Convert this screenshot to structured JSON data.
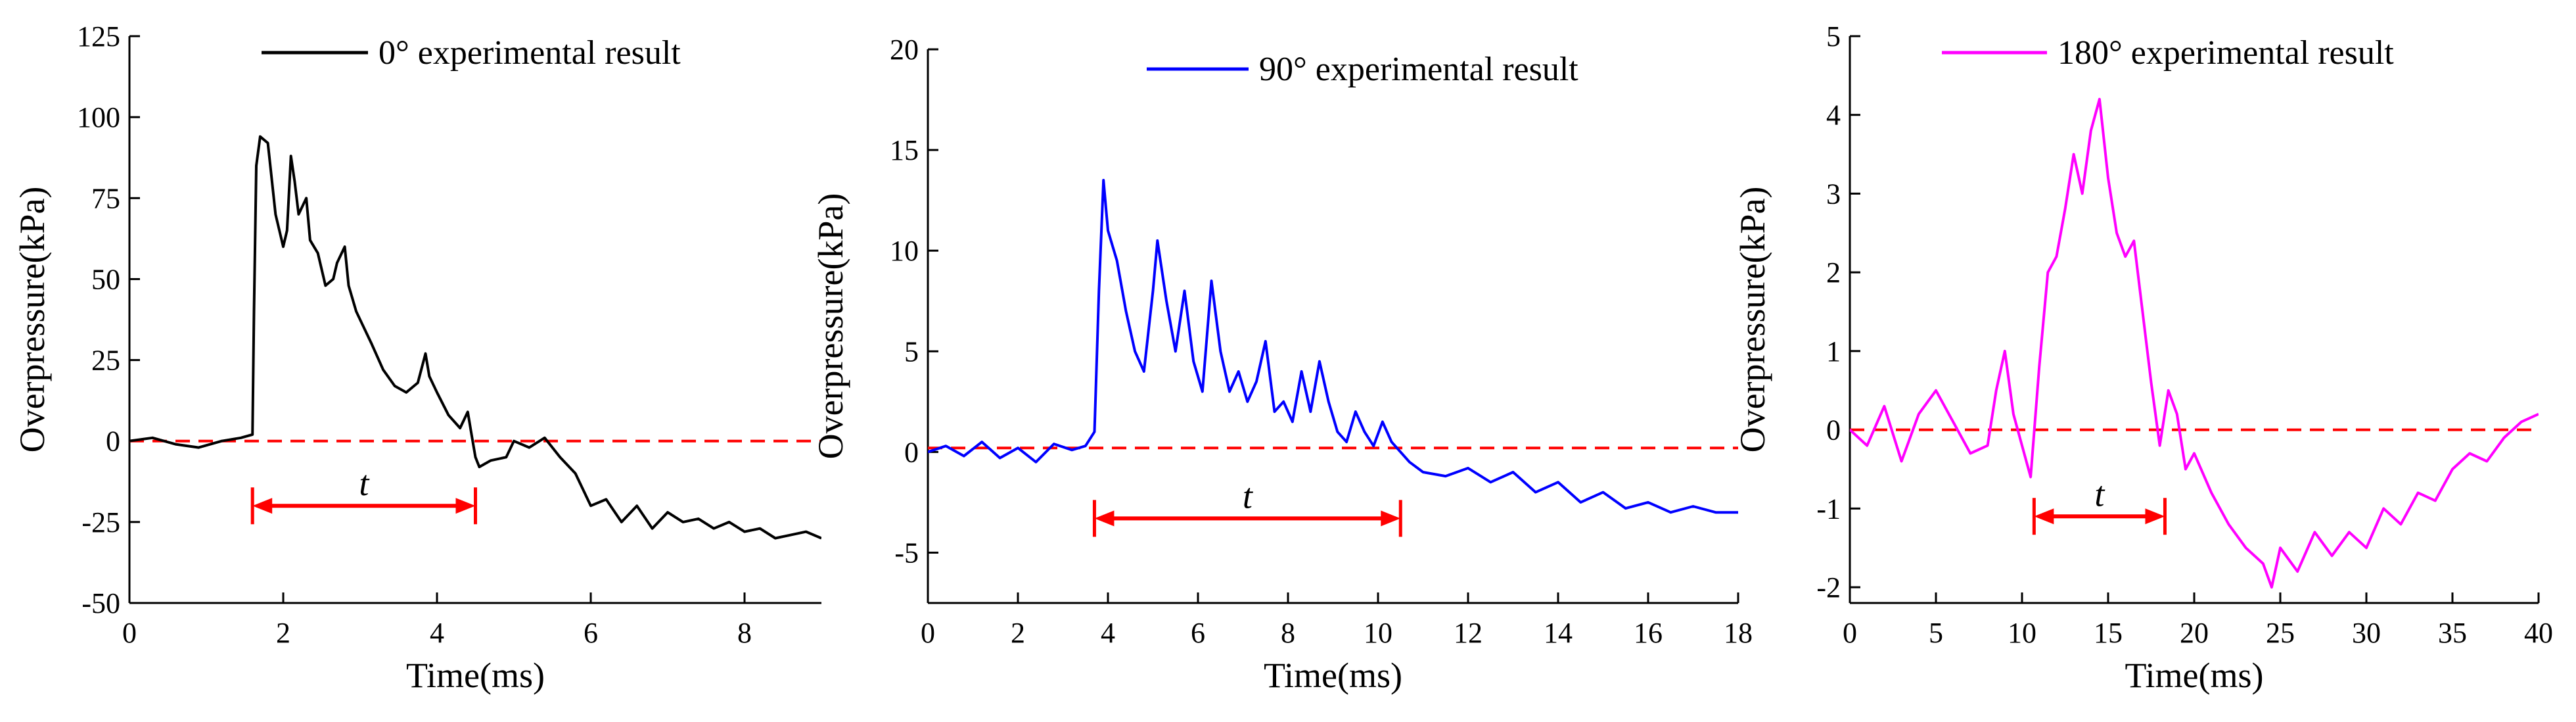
{
  "chart_data": [
    {
      "type": "line",
      "title": "",
      "xlabel": "Time(ms)",
      "ylabel": "Overpressure(kPa)",
      "xlim": [
        0,
        9
      ],
      "ylim": [
        -50,
        125
      ],
      "xticks": [
        0,
        2,
        4,
        6,
        8
      ],
      "yticks": [
        -50,
        -25,
        0,
        25,
        50,
        75,
        100,
        125
      ],
      "xtick_labels": [
        "0",
        "2",
        "4",
        "6",
        "8"
      ],
      "ytick_labels": [
        "-50",
        "-25",
        "0",
        "25",
        "50",
        "75",
        "100",
        "125"
      ],
      "legend": "top-right",
      "reference_line": {
        "y": 0,
        "color": "#ff0000",
        "style": "dashed"
      },
      "duration_marker": {
        "label": "t",
        "x_start": 1.6,
        "x_end": 4.5,
        "y": -20,
        "color": "#ff0000"
      },
      "series": [
        {
          "name": "0° experimental result",
          "color": "#000000",
          "x": [
            0,
            0.3,
            0.6,
            0.9,
            1.2,
            1.45,
            1.6,
            1.62,
            1.65,
            1.7,
            1.8,
            1.9,
            2.0,
            2.05,
            2.1,
            2.15,
            2.2,
            2.3,
            2.35,
            2.45,
            2.55,
            2.65,
            2.7,
            2.8,
            2.85,
            2.95,
            3.05,
            3.15,
            3.3,
            3.45,
            3.6,
            3.75,
            3.85,
            3.9,
            4.0,
            4.15,
            4.3,
            4.4,
            4.45,
            4.5,
            4.55,
            4.7,
            4.9,
            5.0,
            5.2,
            5.4,
            5.6,
            5.8,
            6.0,
            6.2,
            6.4,
            6.6,
            6.8,
            7.0,
            7.2,
            7.4,
            7.6,
            7.8,
            8.0,
            8.2,
            8.4,
            8.6,
            8.8,
            9.0
          ],
          "y": [
            0,
            1,
            -1,
            -2,
            0,
            1,
            2,
            40,
            85,
            94,
            92,
            70,
            60,
            65,
            88,
            80,
            70,
            75,
            62,
            58,
            48,
            50,
            55,
            60,
            48,
            40,
            35,
            30,
            22,
            17,
            15,
            18,
            27,
            20,
            15,
            8,
            4,
            9,
            2,
            -5,
            -8,
            -6,
            -5,
            0,
            -2,
            1,
            -5,
            -10,
            -20,
            -18,
            -25,
            -20,
            -27,
            -22,
            -25,
            -24,
            -27,
            -25,
            -28,
            -27,
            -30,
            -29,
            -28,
            -30
          ]
        }
      ]
    },
    {
      "type": "line",
      "title": "",
      "xlabel": "Time(ms)",
      "ylabel": "Overpressure(kPa)",
      "xlim": [
        0,
        18
      ],
      "ylim": [
        -7.5,
        20
      ],
      "xticks": [
        0,
        2,
        4,
        6,
        8,
        10,
        12,
        14,
        16,
        18
      ],
      "yticks": [
        -5,
        0,
        5,
        10,
        15,
        20
      ],
      "xtick_labels": [
        "0",
        "2",
        "4",
        "6",
        "8",
        "10",
        "12",
        "14",
        "16",
        "18"
      ],
      "ytick_labels": [
        "-5",
        "0",
        "5",
        "10",
        "15",
        "20"
      ],
      "legend": "top-right",
      "reference_line": {
        "y": 0.2,
        "color": "#ff0000",
        "style": "dashed"
      },
      "duration_marker": {
        "label": "t",
        "x_start": 3.7,
        "x_end": 10.5,
        "y": -3.3,
        "color": "#ff0000"
      },
      "series": [
        {
          "name": "90° experimental result",
          "color": "#0000ff",
          "x": [
            0,
            0.4,
            0.8,
            1.2,
            1.6,
            2.0,
            2.4,
            2.8,
            3.2,
            3.5,
            3.7,
            3.8,
            3.9,
            4.0,
            4.2,
            4.4,
            4.6,
            4.8,
            5.0,
            5.1,
            5.3,
            5.5,
            5.7,
            5.9,
            6.1,
            6.3,
            6.5,
            6.7,
            6.9,
            7.1,
            7.3,
            7.5,
            7.7,
            7.9,
            8.1,
            8.3,
            8.5,
            8.7,
            8.9,
            9.1,
            9.3,
            9.5,
            9.7,
            9.9,
            10.1,
            10.3,
            10.5,
            10.7,
            11.0,
            11.5,
            12.0,
            12.5,
            13.0,
            13.5,
            14.0,
            14.5,
            15.0,
            15.5,
            16.0,
            16.5,
            17.0,
            17.5,
            18.0
          ],
          "y": [
            0,
            0.3,
            -0.2,
            0.5,
            -0.3,
            0.2,
            -0.5,
            0.4,
            0.1,
            0.3,
            1.0,
            8.0,
            13.5,
            11.0,
            9.5,
            7.0,
            5.0,
            4.0,
            8.0,
            10.5,
            7.5,
            5.0,
            8.0,
            4.5,
            3.0,
            8.5,
            5.0,
            3.0,
            4.0,
            2.5,
            3.5,
            5.5,
            2.0,
            2.5,
            1.5,
            4.0,
            2.0,
            4.5,
            2.5,
            1.0,
            0.5,
            2.0,
            1.0,
            0.3,
            1.5,
            0.5,
            0.0,
            -0.5,
            -1.0,
            -1.2,
            -0.8,
            -1.5,
            -1.0,
            -2.0,
            -1.5,
            -2.5,
            -2.0,
            -2.8,
            -2.5,
            -3.0,
            -2.7,
            -3.0,
            -3.0
          ]
        }
      ]
    },
    {
      "type": "line",
      "title": "",
      "xlabel": "Time(ms)",
      "ylabel": "Overpressure(kPa)",
      "xlim": [
        0,
        40
      ],
      "ylim": [
        -2.2,
        5
      ],
      "xticks": [
        0,
        5,
        10,
        15,
        20,
        25,
        30,
        35,
        40
      ],
      "yticks": [
        -2,
        -1,
        0,
        1,
        2,
        3,
        4,
        5
      ],
      "xtick_labels": [
        "0",
        "5",
        "10",
        "15",
        "20",
        "25",
        "30",
        "35",
        "40"
      ],
      "ytick_labels": [
        "-2",
        "-1",
        "0",
        "1",
        "2",
        "3",
        "4",
        "5"
      ],
      "legend": "top-right",
      "reference_line": {
        "y": 0,
        "color": "#ff0000",
        "style": "dashed"
      },
      "duration_marker": {
        "label": "t",
        "x_start": 10.7,
        "x_end": 18.3,
        "y": -1.1,
        "color": "#ff0000"
      },
      "series": [
        {
          "name": "180° experimental result",
          "color": "#ff00ff",
          "x": [
            0,
            1,
            2,
            3,
            4,
            5,
            6,
            7,
            8,
            8.5,
            9,
            9.5,
            10,
            10.5,
            11,
            11.5,
            12,
            12.5,
            13,
            13.5,
            14,
            14.5,
            15,
            15.5,
            16,
            16.5,
            17,
            17.5,
            18,
            18.5,
            19,
            19.5,
            20,
            21,
            22,
            23,
            24,
            24.5,
            25,
            26,
            27,
            28,
            29,
            30,
            31,
            32,
            33,
            34,
            35,
            36,
            37,
            38,
            39,
            40
          ],
          "y": [
            0,
            -0.2,
            0.3,
            -0.4,
            0.2,
            0.5,
            0.1,
            -0.3,
            -0.2,
            0.5,
            1.0,
            0.2,
            -0.2,
            -0.6,
            0.8,
            2.0,
            2.2,
            2.8,
            3.5,
            3.0,
            3.8,
            4.2,
            3.2,
            2.5,
            2.2,
            2.4,
            1.5,
            0.6,
            -0.2,
            0.5,
            0.2,
            -0.5,
            -0.3,
            -0.8,
            -1.2,
            -1.5,
            -1.7,
            -2.0,
            -1.5,
            -1.8,
            -1.3,
            -1.6,
            -1.3,
            -1.5,
            -1.0,
            -1.2,
            -0.8,
            -0.9,
            -0.5,
            -0.3,
            -0.4,
            -0.1,
            0.1,
            0.2
          ]
        }
      ]
    }
  ]
}
